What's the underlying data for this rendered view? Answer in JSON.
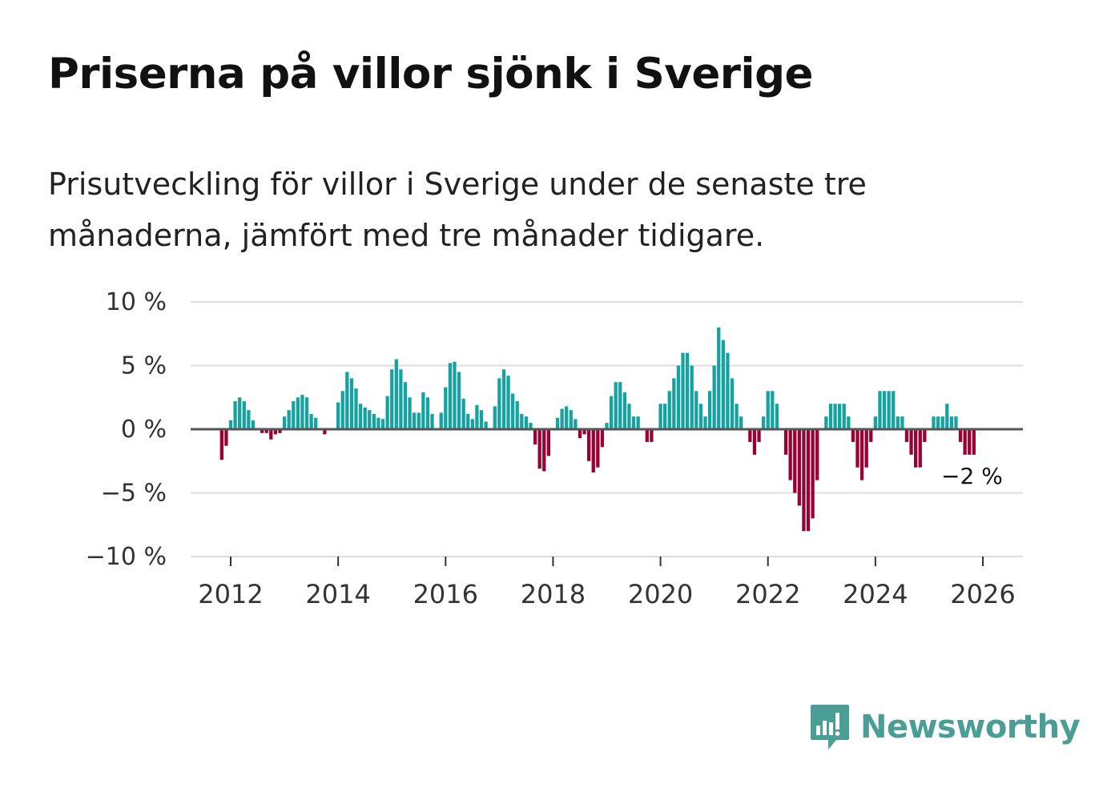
{
  "colors": {
    "positive": "#14a3a0",
    "negative": "#990033",
    "grid": "#dddddd",
    "zero": "#555555",
    "brand": "#4a9e96"
  },
  "chart_data": {
    "type": "bar",
    "title": "Priserna på villor sjönk i Sverige",
    "subtitle": "Prisutveckling för villor i Sverige under de senaste tre månaderna, jämfört med tre månader tidigare.",
    "xlabel": "",
    "ylabel": "",
    "ylim": [
      -10,
      10
    ],
    "y_ticks": [
      {
        "value": 10,
        "label": "10 %"
      },
      {
        "value": 5,
        "label": "5 %"
      },
      {
        "value": 0,
        "label": "0 %"
      },
      {
        "value": -5,
        "label": "−5 %"
      },
      {
        "value": -10,
        "label": "−10 %"
      }
    ],
    "x_ticks": [
      {
        "year": 2012,
        "label": "2012"
      },
      {
        "year": 2014,
        "label": "2014"
      },
      {
        "year": 2016,
        "label": "2016"
      },
      {
        "year": 2018,
        "label": "2018"
      },
      {
        "year": 2020,
        "label": "2020"
      },
      {
        "year": 2022,
        "label": "2022"
      },
      {
        "year": 2024,
        "label": "2024"
      },
      {
        "year": 2026,
        "label": "2026"
      }
    ],
    "start_year": 2011,
    "start_month": 11,
    "frequency": "monthly",
    "values": [
      -2.4,
      -1.3,
      0.7,
      2.2,
      2.5,
      2.2,
      1.5,
      0.7,
      0,
      -0.3,
      -0.3,
      -0.8,
      -0.4,
      -0.3,
      1.0,
      1.5,
      2.2,
      2.5,
      2.7,
      2.5,
      1.2,
      0.9,
      0,
      -0.4,
      0,
      0,
      2.1,
      3.0,
      4.5,
      4.0,
      3.2,
      2.0,
      1.7,
      1.5,
      1.2,
      0.9,
      0.8,
      2.6,
      4.7,
      5.5,
      4.7,
      3.7,
      2.5,
      1.3,
      1.3,
      2.9,
      2.5,
      1.2,
      0,
      1.3,
      3.3,
      5.2,
      5.3,
      4.5,
      2.4,
      1.2,
      0.8,
      1.9,
      1.5,
      0.6,
      0,
      1.8,
      4.0,
      4.7,
      4.2,
      2.8,
      2.2,
      1.2,
      1.0,
      0.5,
      -1.2,
      -3.1,
      -3.3,
      -2.1,
      0,
      0.9,
      1.6,
      1.8,
      1.5,
      0.8,
      -0.7,
      -0.4,
      -2.5,
      -3.4,
      -3.0,
      -1.4,
      0.5,
      2.6,
      3.7,
      3.7,
      2.9,
      2.0,
      1.0,
      1.0,
      0,
      -1.0,
      -1.0,
      0,
      2.0,
      2.0,
      3.0,
      4.0,
      5.0,
      6.0,
      6.0,
      5.0,
      3.0,
      2.0,
      1.0,
      3.0,
      5.0,
      8.0,
      7.0,
      6.0,
      4.0,
      2.0,
      1.0,
      0,
      -1.0,
      -2.0,
      -1.0,
      1.0,
      3.0,
      3.0,
      2.0,
      0,
      -2.0,
      -4.0,
      -5.0,
      -6.0,
      -8.0,
      -8.0,
      -7.0,
      -4.0,
      0,
      1.0,
      2.0,
      2.0,
      2.0,
      2.0,
      1.0,
      -1.0,
      -3.0,
      -4.0,
      -3.0,
      -1.0,
      1.0,
      3.0,
      3.0,
      3.0,
      3.0,
      1.0,
      1.0,
      -1.0,
      -2.0,
      -3.0,
      -3.0,
      -1.0,
      0,
      1.0,
      1.0,
      1.0,
      2.0,
      1.0,
      1.0,
      -1.0,
      -2.0,
      -2.0,
      -2.0
    ],
    "annotations": [
      {
        "label": "−2 %",
        "target": "last"
      }
    ]
  },
  "branding": {
    "logo_text": "Newsworthy"
  }
}
